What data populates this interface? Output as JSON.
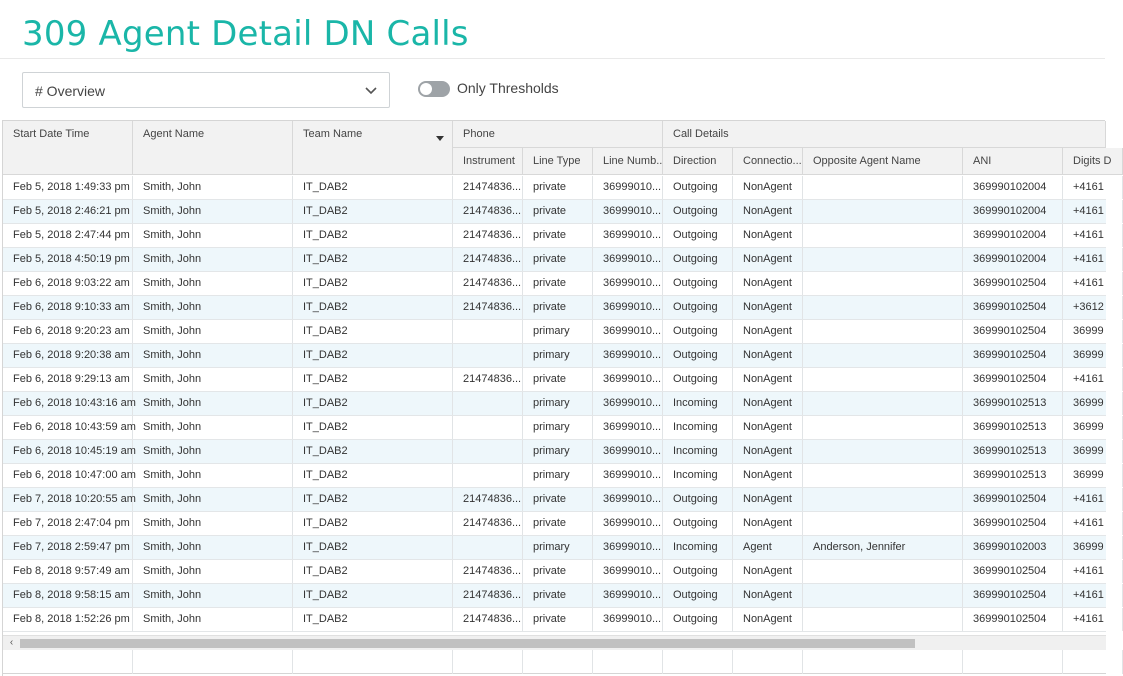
{
  "page": {
    "title": "309 Agent Detail DN Calls",
    "view_select": {
      "value": "# Overview",
      "icon": "chevron-down-icon"
    },
    "toggle": {
      "label": "Only Thresholds",
      "on": false
    }
  },
  "table": {
    "groups": [
      {
        "key": "phone",
        "label": "Phone"
      },
      {
        "key": "call_details",
        "label": "Call Details"
      }
    ],
    "columns": [
      {
        "key": "start",
        "label": "Start Date Time"
      },
      {
        "key": "agent",
        "label": "Agent Name"
      },
      {
        "key": "team",
        "label": "Team Name",
        "sorted": "desc"
      },
      {
        "key": "instrument",
        "label": "Instrument"
      },
      {
        "key": "line_type",
        "label": "Line Type"
      },
      {
        "key": "line_number",
        "label": "Line Numb..."
      },
      {
        "key": "direction",
        "label": "Direction"
      },
      {
        "key": "connection",
        "label": "Connectio..."
      },
      {
        "key": "opposite",
        "label": "Opposite Agent Name"
      },
      {
        "key": "ani",
        "label": "ANI"
      },
      {
        "key": "digits",
        "label": "Digits D"
      }
    ],
    "rows": [
      [
        "Feb 5, 2018 1:49:33 pm",
        "Smith, John",
        "IT_DAB2",
        "21474836...",
        "private",
        "36999010...",
        "Outgoing",
        "NonAgent",
        "",
        "369990102004",
        "+4161"
      ],
      [
        "Feb 5, 2018 2:46:21 pm",
        "Smith, John",
        "IT_DAB2",
        "21474836...",
        "private",
        "36999010...",
        "Outgoing",
        "NonAgent",
        "",
        "369990102004",
        "+4161"
      ],
      [
        "Feb 5, 2018 2:47:44 pm",
        "Smith, John",
        "IT_DAB2",
        "21474836...",
        "private",
        "36999010...",
        "Outgoing",
        "NonAgent",
        "",
        "369990102004",
        "+4161"
      ],
      [
        "Feb 5, 2018 4:50:19 pm",
        "Smith, John",
        "IT_DAB2",
        "21474836...",
        "private",
        "36999010...",
        "Outgoing",
        "NonAgent",
        "",
        "369990102004",
        "+4161"
      ],
      [
        "Feb 6, 2018 9:03:22 am",
        "Smith, John",
        "IT_DAB2",
        "21474836...",
        "private",
        "36999010...",
        "Outgoing",
        "NonAgent",
        "",
        "369990102504",
        "+4161"
      ],
      [
        "Feb 6, 2018 9:10:33 am",
        "Smith, John",
        "IT_DAB2",
        "21474836...",
        "private",
        "36999010...",
        "Outgoing",
        "NonAgent",
        "",
        "369990102504",
        "+3612"
      ],
      [
        "Feb 6, 2018 9:20:23 am",
        "Smith, John",
        "IT_DAB2",
        "",
        "primary",
        "36999010...",
        "Outgoing",
        "NonAgent",
        "",
        "369990102504",
        "36999"
      ],
      [
        "Feb 6, 2018 9:20:38 am",
        "Smith, John",
        "IT_DAB2",
        "",
        "primary",
        "36999010...",
        "Outgoing",
        "NonAgent",
        "",
        "369990102504",
        "36999"
      ],
      [
        "Feb 6, 2018 9:29:13 am",
        "Smith, John",
        "IT_DAB2",
        "21474836...",
        "private",
        "36999010...",
        "Outgoing",
        "NonAgent",
        "",
        "369990102504",
        "+4161"
      ],
      [
        "Feb 6, 2018 10:43:16 am",
        "Smith, John",
        "IT_DAB2",
        "",
        "primary",
        "36999010...",
        "Incoming",
        "NonAgent",
        "",
        "369990102513",
        "36999"
      ],
      [
        "Feb 6, 2018 10:43:59 am",
        "Smith, John",
        "IT_DAB2",
        "",
        "primary",
        "36999010...",
        "Incoming",
        "NonAgent",
        "",
        "369990102513",
        "36999"
      ],
      [
        "Feb 6, 2018 10:45:19 am",
        "Smith, John",
        "IT_DAB2",
        "",
        "primary",
        "36999010...",
        "Incoming",
        "NonAgent",
        "",
        "369990102513",
        "36999"
      ],
      [
        "Feb 6, 2018 10:47:00 am",
        "Smith, John",
        "IT_DAB2",
        "",
        "primary",
        "36999010...",
        "Incoming",
        "NonAgent",
        "",
        "369990102513",
        "36999"
      ],
      [
        "Feb 7, 2018 10:20:55 am",
        "Smith, John",
        "IT_DAB2",
        "21474836...",
        "private",
        "36999010...",
        "Outgoing",
        "NonAgent",
        "",
        "369990102504",
        "+4161"
      ],
      [
        "Feb 7, 2018 2:47:04 pm",
        "Smith, John",
        "IT_DAB2",
        "21474836...",
        "private",
        "36999010...",
        "Outgoing",
        "NonAgent",
        "",
        "369990102504",
        "+4161"
      ],
      [
        "Feb 7, 2018 2:59:47 pm",
        "Smith, John",
        "IT_DAB2",
        "",
        "primary",
        "36999010...",
        "Incoming",
        "Agent",
        "Anderson, Jennifer",
        "369990102003",
        "36999"
      ],
      [
        "Feb 8, 2018 9:57:49 am",
        "Smith, John",
        "IT_DAB2",
        "21474836...",
        "private",
        "36999010...",
        "Outgoing",
        "NonAgent",
        "",
        "369990102504",
        "+4161"
      ],
      [
        "Feb 8, 2018 9:58:15 am",
        "Smith, John",
        "IT_DAB2",
        "21474836...",
        "private",
        "36999010...",
        "Outgoing",
        "NonAgent",
        "",
        "369990102504",
        "+4161"
      ],
      [
        "Feb 8, 2018 1:52:26 pm",
        "Smith, John",
        "IT_DAB2",
        "21474836...",
        "private",
        "36999010...",
        "Outgoing",
        "NonAgent",
        "",
        "369990102504",
        "+4161"
      ]
    ]
  },
  "scrollbar": {
    "left_arrow": "‹",
    "icon": "chevron-left-icon"
  },
  "colors": {
    "accent": "#1ab6a8",
    "row_alt": "#eef7fb",
    "header_bg": "#f2f2f2"
  }
}
